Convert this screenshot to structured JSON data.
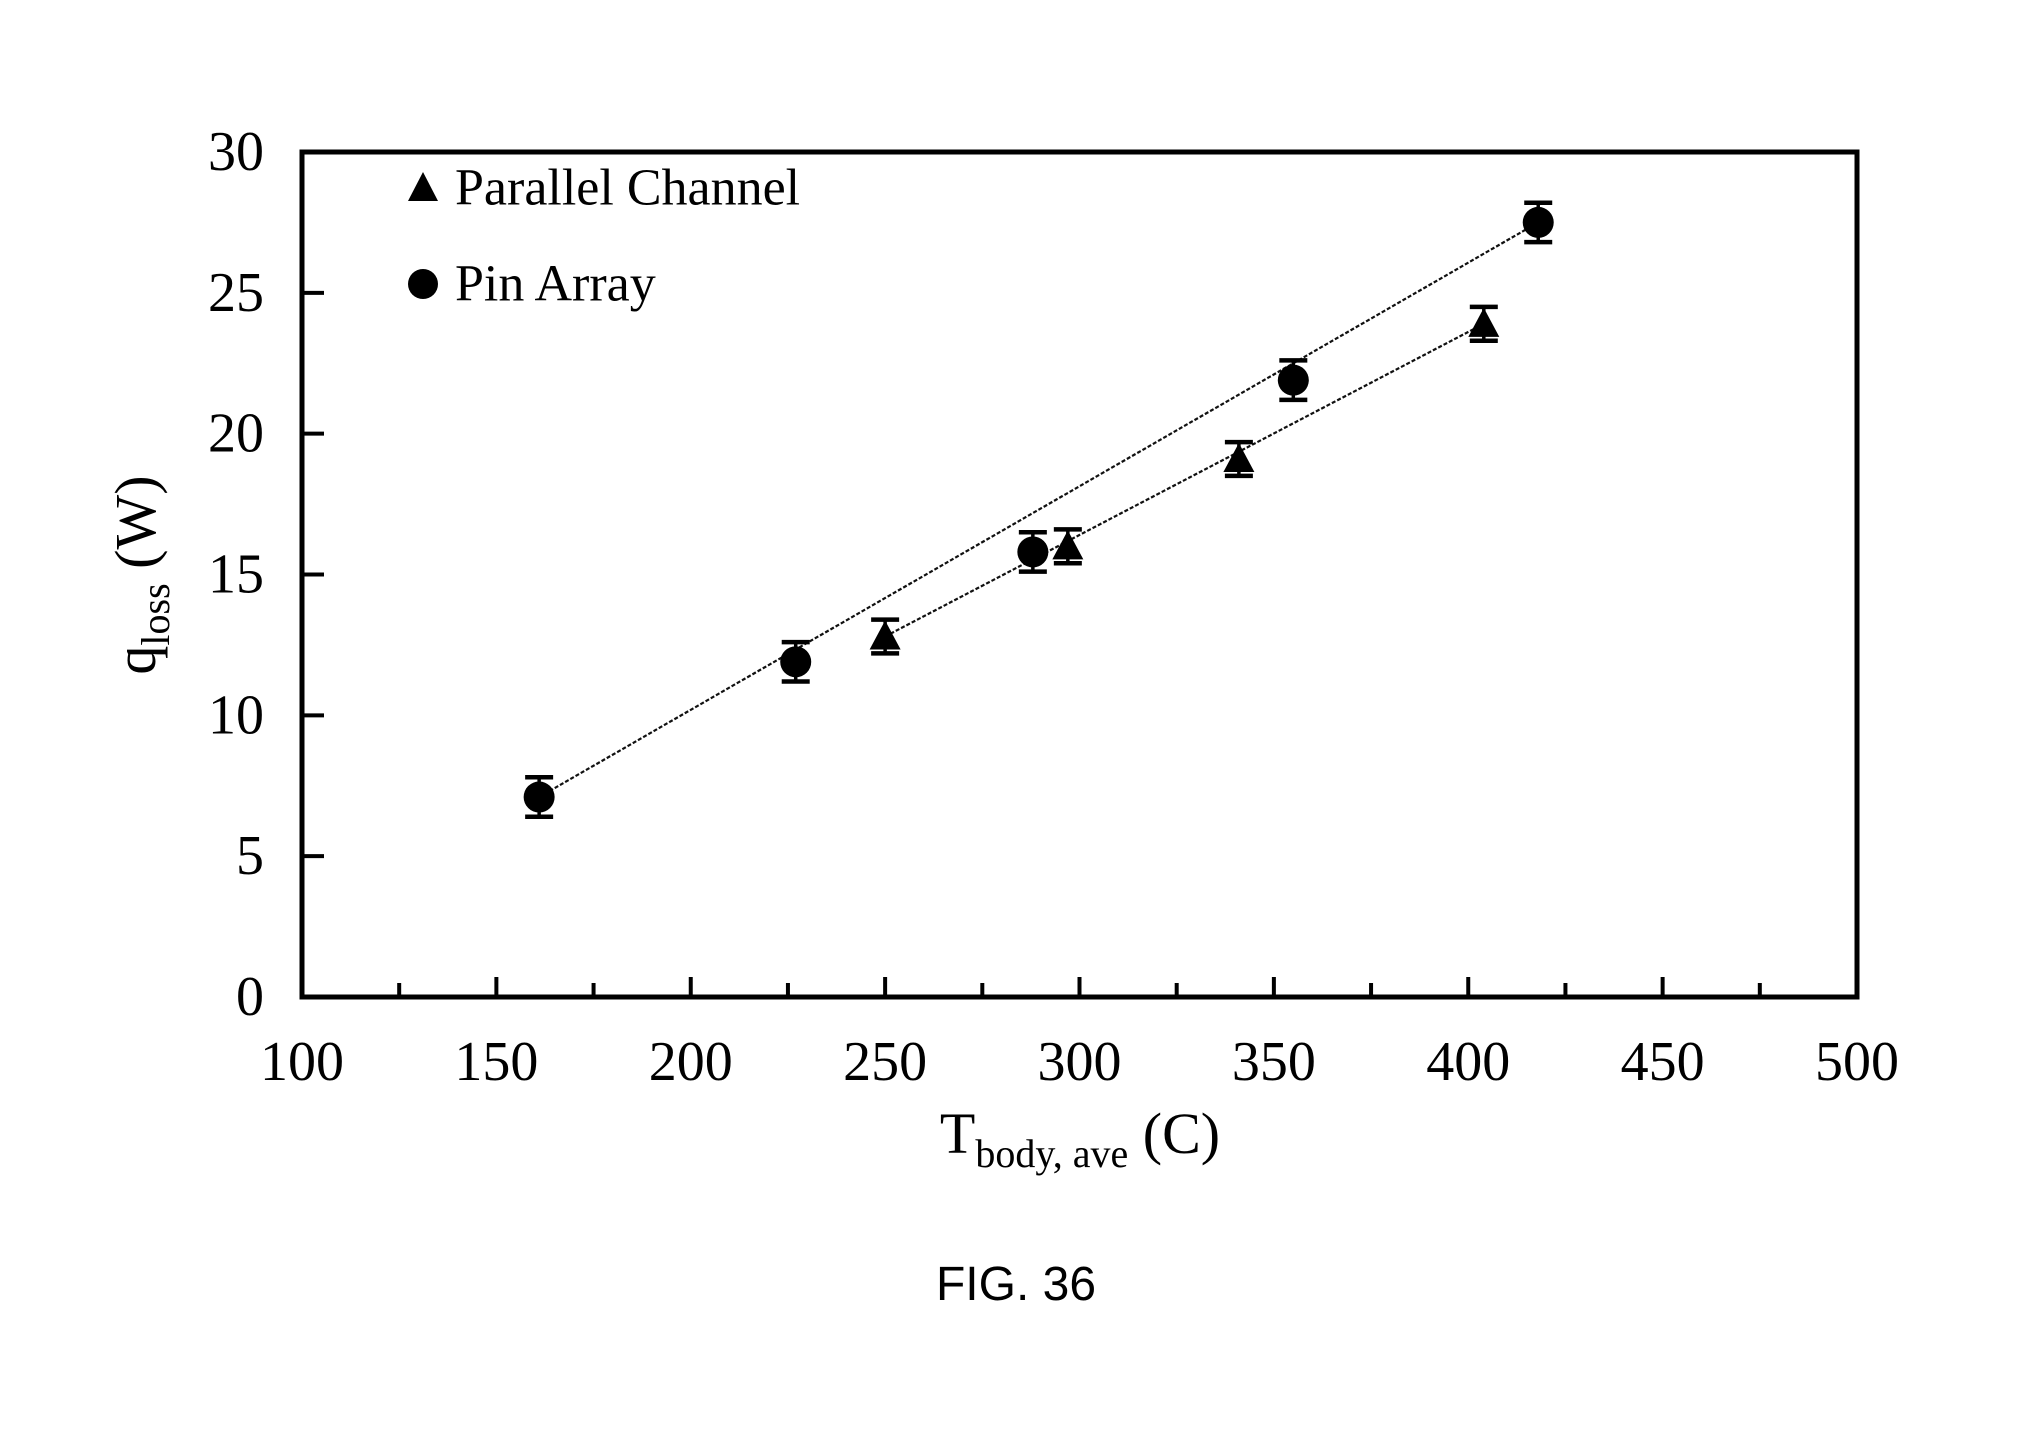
{
  "caption": "FIG. 36",
  "axes": {
    "x_title": {
      "main": "T",
      "sub": "body, ave",
      "unit": " (C)"
    },
    "y_title": {
      "main": "q",
      "sub": "loss",
      "unit": " (W)"
    }
  },
  "legend": {
    "items": [
      {
        "label": "Parallel Channel",
        "marker": "triangle-icon"
      },
      {
        "label": "Pin Array",
        "marker": "circle-icon"
      }
    ]
  },
  "chart_data": {
    "type": "scatter",
    "title": "",
    "xlabel": "T_body, ave (C)",
    "ylabel": "q_loss (W)",
    "xlim": [
      100,
      500
    ],
    "ylim": [
      0,
      30
    ],
    "x_tick_labels": [
      100,
      150,
      200,
      250,
      300,
      350,
      400,
      450,
      500
    ],
    "x_minor_tick_step": 25,
    "y_tick_labels": [
      0,
      5,
      10,
      15,
      20,
      25,
      30
    ],
    "grid": false,
    "legend_position": "upper-left-inside",
    "marker_color": "#000000",
    "line_color": "#111111",
    "fit_lines": true,
    "series": [
      {
        "name": "Parallel Channel",
        "marker": "triangle",
        "x": [
          250,
          297,
          341,
          404
        ],
        "y": [
          12.8,
          16.0,
          19.1,
          23.9
        ],
        "yerr": 0.6
      },
      {
        "name": "Pin Array",
        "marker": "circle",
        "x": [
          161,
          227,
          288,
          355,
          418
        ],
        "y": [
          7.1,
          11.9,
          15.8,
          21.9,
          27.5
        ],
        "yerr": 0.7
      }
    ]
  }
}
